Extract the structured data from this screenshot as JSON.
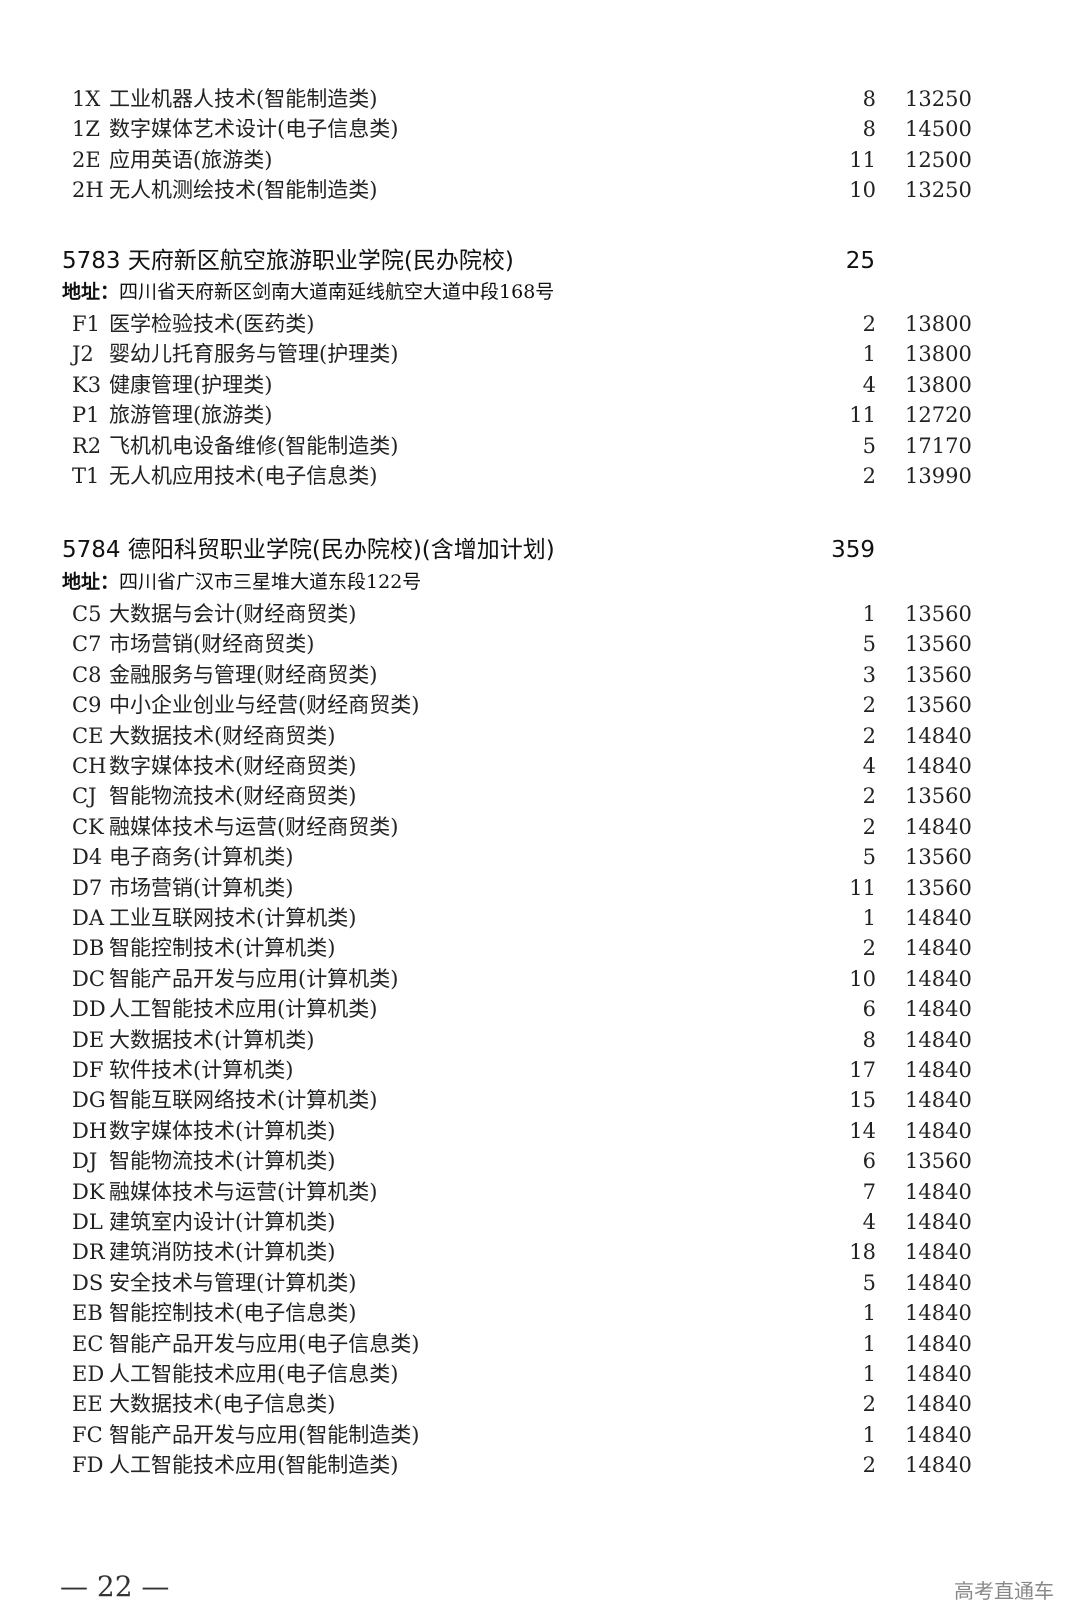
{
  "sections": [
    {
      "rows": [
        {
          "code": "1X",
          "name": "工业机器人技术(智能制造类)",
          "count": "8",
          "fee": "13250"
        },
        {
          "code": "1Z",
          "name": "数字媒体艺术设计(电子信息类)",
          "count": "8",
          "fee": "14500"
        },
        {
          "code": "2E",
          "name": "应用英语(旅游类)",
          "count": "11",
          "fee": "12500"
        },
        {
          "code": "2H",
          "name": "无人机测绘技术(智能制造类)",
          "count": "10",
          "fee": "13250"
        }
      ]
    },
    {
      "school": "5783  天府新区航空旅游职业学院(民办院校)",
      "total": "25",
      "addr_label": "地址：",
      "addr": "四川省天府新区剑南大道南延线航空大道中段168号",
      "rows": [
        {
          "code": "F1",
          "name": "医学检验技术(医药类)",
          "count": "2",
          "fee": "13800"
        },
        {
          "code": "J2",
          "name": "婴幼儿托育服务与管理(护理类)",
          "count": "1",
          "fee": "13800"
        },
        {
          "code": "K3",
          "name": "健康管理(护理类)",
          "count": "4",
          "fee": "13800"
        },
        {
          "code": "P1",
          "name": "旅游管理(旅游类)",
          "count": "11",
          "fee": "12720"
        },
        {
          "code": "R2",
          "name": "飞机机电设备维修(智能制造类)",
          "count": "5",
          "fee": "17170"
        },
        {
          "code": "T1",
          "name": "无人机应用技术(电子信息类)",
          "count": "2",
          "fee": "13990"
        }
      ]
    },
    {
      "school": "5784  德阳科贸职业学院(民办院校)(含增加计划)",
      "total": "359",
      "addr_label": "地址：",
      "addr": "四川省广汉市三星堆大道东段122号",
      "rows": [
        {
          "code": "C5",
          "name": "大数据与会计(财经商贸类)",
          "count": "1",
          "fee": "13560"
        },
        {
          "code": "C7",
          "name": "市场营销(财经商贸类)",
          "count": "5",
          "fee": "13560"
        },
        {
          "code": "C8",
          "name": "金融服务与管理(财经商贸类)",
          "count": "3",
          "fee": "13560"
        },
        {
          "code": "C9",
          "name": "中小企业创业与经营(财经商贸类)",
          "count": "2",
          "fee": "13560"
        },
        {
          "code": "CE",
          "name": "大数据技术(财经商贸类)",
          "count": "2",
          "fee": "14840"
        },
        {
          "code": "CH",
          "name": "数字媒体技术(财经商贸类)",
          "count": "4",
          "fee": "14840"
        },
        {
          "code": "CJ",
          "name": "智能物流技术(财经商贸类)",
          "count": "2",
          "fee": "13560"
        },
        {
          "code": "CK",
          "name": "融媒体技术与运营(财经商贸类)",
          "count": "2",
          "fee": "14840"
        },
        {
          "code": "D4",
          "name": "电子商务(计算机类)",
          "count": "5",
          "fee": "13560"
        },
        {
          "code": "D7",
          "name": "市场营销(计算机类)",
          "count": "11",
          "fee": "13560"
        },
        {
          "code": "DA",
          "name": "工业互联网技术(计算机类)",
          "count": "1",
          "fee": "14840"
        },
        {
          "code": "DB",
          "name": "智能控制技术(计算机类)",
          "count": "2",
          "fee": "14840"
        },
        {
          "code": "DC",
          "name": "智能产品开发与应用(计算机类)",
          "count": "10",
          "fee": "14840"
        },
        {
          "code": "DD",
          "name": "人工智能技术应用(计算机类)",
          "count": "6",
          "fee": "14840"
        },
        {
          "code": "DE",
          "name": "大数据技术(计算机类)",
          "count": "8",
          "fee": "14840"
        },
        {
          "code": "DF",
          "name": "软件技术(计算机类)",
          "count": "17",
          "fee": "14840"
        },
        {
          "code": "DG",
          "name": "智能互联网络技术(计算机类)",
          "count": "15",
          "fee": "14840"
        },
        {
          "code": "DH",
          "name": "数字媒体技术(计算机类)",
          "count": "14",
          "fee": "14840"
        },
        {
          "code": "DJ",
          "name": "智能物流技术(计算机类)",
          "count": "6",
          "fee": "13560"
        },
        {
          "code": "DK",
          "name": "融媒体技术与运营(计算机类)",
          "count": "7",
          "fee": "14840"
        },
        {
          "code": "DL",
          "name": "建筑室内设计(计算机类)",
          "count": "4",
          "fee": "14840"
        },
        {
          "code": "DR",
          "name": "建筑消防技术(计算机类)",
          "count": "18",
          "fee": "14840"
        },
        {
          "code": "DS",
          "name": "安全技术与管理(计算机类)",
          "count": "5",
          "fee": "14840"
        },
        {
          "code": "EB",
          "name": "智能控制技术(电子信息类)",
          "count": "1",
          "fee": "14840"
        },
        {
          "code": "EC",
          "name": "智能产品开发与应用(电子信息类)",
          "count": "1",
          "fee": "14840"
        },
        {
          "code": "ED",
          "name": "人工智能技术应用(电子信息类)",
          "count": "1",
          "fee": "14840"
        },
        {
          "code": "EE",
          "name": "大数据技术(电子信息类)",
          "count": "2",
          "fee": "14840"
        },
        {
          "code": "FC",
          "name": "智能产品开发与应用(智能制造类)",
          "count": "1",
          "fee": "14840"
        },
        {
          "code": "FD",
          "name": "人工智能技术应用(智能制造类)",
          "count": "2",
          "fee": "14840"
        }
      ]
    }
  ],
  "footer": {
    "page": "— 22 —",
    "watermark": "高考直通车"
  }
}
